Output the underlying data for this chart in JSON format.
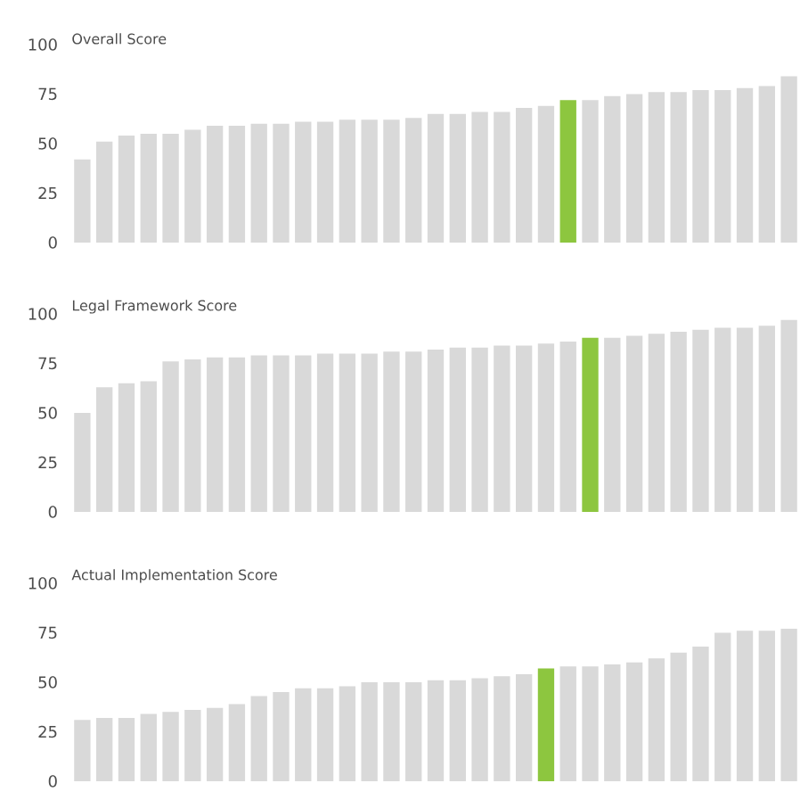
{
  "chart_data": [
    {
      "type": "bar",
      "title": "Overall Score",
      "categories": [
        null,
        null,
        null,
        null,
        null,
        null,
        null,
        null,
        null,
        null,
        null,
        null,
        null,
        null,
        null,
        null,
        null,
        null,
        null,
        null,
        null,
        null,
        null,
        null,
        null,
        null,
        null,
        null,
        null,
        null,
        null,
        null,
        null
      ],
      "values": [
        42,
        51,
        54,
        55,
        55,
        57,
        59,
        59,
        60,
        60,
        61,
        61,
        62,
        62,
        62,
        63,
        65,
        65,
        66,
        66,
        68,
        69,
        72,
        72,
        74,
        75,
        76,
        76,
        77,
        77,
        78,
        79,
        84
      ],
      "colors": [
        "#d9d9d9",
        "#d9d9d9",
        "#d9d9d9",
        "#d9d9d9",
        "#d9d9d9",
        "#d9d9d9",
        "#d9d9d9",
        "#d9d9d9",
        "#d9d9d9",
        "#d9d9d9",
        "#d9d9d9",
        "#d9d9d9",
        "#d9d9d9",
        "#d9d9d9",
        "#d9d9d9",
        "#d9d9d9",
        "#d9d9d9",
        "#d9d9d9",
        "#d9d9d9",
        "#d9d9d9",
        "#d9d9d9",
        "#d9d9d9",
        "#8dc63f",
        "#d9d9d9",
        "#d9d9d9",
        "#d9d9d9",
        "#d9d9d9",
        "#d9d9d9",
        "#d9d9d9",
        "#d9d9d9",
        "#d9d9d9",
        "#d9d9d9",
        "#d9d9d9"
      ],
      "ylim": [
        0,
        100
      ],
      "yticks": [
        0,
        25,
        50,
        75,
        100
      ]
    },
    {
      "type": "bar",
      "title": "Legal Framework Score",
      "categories": [
        null,
        null,
        null,
        null,
        null,
        null,
        null,
        null,
        null,
        null,
        null,
        null,
        null,
        null,
        null,
        null,
        null,
        null,
        null,
        null,
        null,
        null,
        null,
        null,
        null,
        null,
        null,
        null,
        null,
        null,
        null,
        null,
        null
      ],
      "values": [
        50,
        63,
        65,
        66,
        76,
        77,
        78,
        78,
        79,
        79,
        79,
        80,
        80,
        80,
        81,
        81,
        82,
        83,
        83,
        84,
        84,
        85,
        86,
        88,
        88,
        89,
        90,
        91,
        92,
        93,
        93,
        94,
        97
      ],
      "colors": [
        "#d9d9d9",
        "#d9d9d9",
        "#d9d9d9",
        "#d9d9d9",
        "#d9d9d9",
        "#d9d9d9",
        "#d9d9d9",
        "#d9d9d9",
        "#d9d9d9",
        "#d9d9d9",
        "#d9d9d9",
        "#d9d9d9",
        "#d9d9d9",
        "#d9d9d9",
        "#d9d9d9",
        "#d9d9d9",
        "#d9d9d9",
        "#d9d9d9",
        "#d9d9d9",
        "#d9d9d9",
        "#d9d9d9",
        "#d9d9d9",
        "#d9d9d9",
        "#8dc63f",
        "#d9d9d9",
        "#d9d9d9",
        "#d9d9d9",
        "#d9d9d9",
        "#d9d9d9",
        "#d9d9d9",
        "#d9d9d9",
        "#d9d9d9",
        "#d9d9d9"
      ],
      "ylim": [
        0,
        100
      ],
      "yticks": [
        0,
        25,
        50,
        75,
        100
      ]
    },
    {
      "type": "bar",
      "title": "Actual Implementation Score",
      "categories": [
        null,
        null,
        null,
        null,
        null,
        null,
        null,
        null,
        null,
        null,
        null,
        null,
        null,
        null,
        null,
        null,
        null,
        null,
        null,
        null,
        null,
        null,
        null,
        null,
        null,
        null,
        null,
        null,
        null,
        null,
        null,
        null,
        null
      ],
      "values": [
        31,
        32,
        32,
        34,
        35,
        36,
        37,
        39,
        43,
        45,
        47,
        47,
        48,
        50,
        50,
        50,
        51,
        51,
        52,
        53,
        54,
        57,
        58,
        58,
        59,
        60,
        62,
        65,
        68,
        75,
        76,
        76,
        77
      ],
      "colors": [
        "#d9d9d9",
        "#d9d9d9",
        "#d9d9d9",
        "#d9d9d9",
        "#d9d9d9",
        "#d9d9d9",
        "#d9d9d9",
        "#d9d9d9",
        "#d9d9d9",
        "#d9d9d9",
        "#d9d9d9",
        "#d9d9d9",
        "#d9d9d9",
        "#d9d9d9",
        "#d9d9d9",
        "#d9d9d9",
        "#d9d9d9",
        "#d9d9d9",
        "#d9d9d9",
        "#d9d9d9",
        "#d9d9d9",
        "#8dc63f",
        "#d9d9d9",
        "#d9d9d9",
        "#d9d9d9",
        "#d9d9d9",
        "#d9d9d9",
        "#d9d9d9",
        "#d9d9d9",
        "#d9d9d9",
        "#d9d9d9",
        "#d9d9d9",
        "#d9d9d9"
      ],
      "ylim": [
        0,
        100
      ],
      "yticks": [
        0,
        25,
        50,
        75,
        100
      ]
    }
  ]
}
